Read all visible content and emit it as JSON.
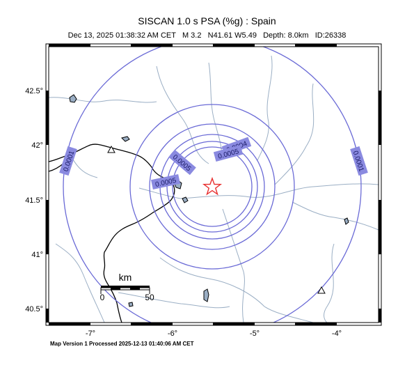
{
  "header": {
    "title": "SISCAN 1.0 s PSA (%g) : Spain",
    "subtitle": "Dec 13, 2025 01:38:32 AM CET   M 3.2   N41.61 W5.49   Depth: 8.0km   ID:26338"
  },
  "footer": {
    "text": "Map Version 1 Processed 2025-12-13 01:40:06 AM CET"
  },
  "axes": {
    "lat_ticks": [
      "42.5°",
      "42°",
      "41.5°",
      "41°",
      "40.5°"
    ],
    "lon_ticks": [
      "-7°",
      "-6°",
      "-5°",
      "-4°"
    ]
  },
  "epicenter": {
    "symbol": "star",
    "color": "#e83030"
  },
  "contours": {
    "color": "#6a6ad6",
    "labels": [
      "0.0001",
      "0.0001",
      "0.0004",
      "0.0005",
      "0.0005",
      "0.0005"
    ]
  },
  "scalebar": {
    "unit": "km",
    "min": "0",
    "max": "50"
  },
  "colors": {
    "rivers": "#9aaec4",
    "border": "#000000",
    "label_bg": "#8a8ae0"
  }
}
